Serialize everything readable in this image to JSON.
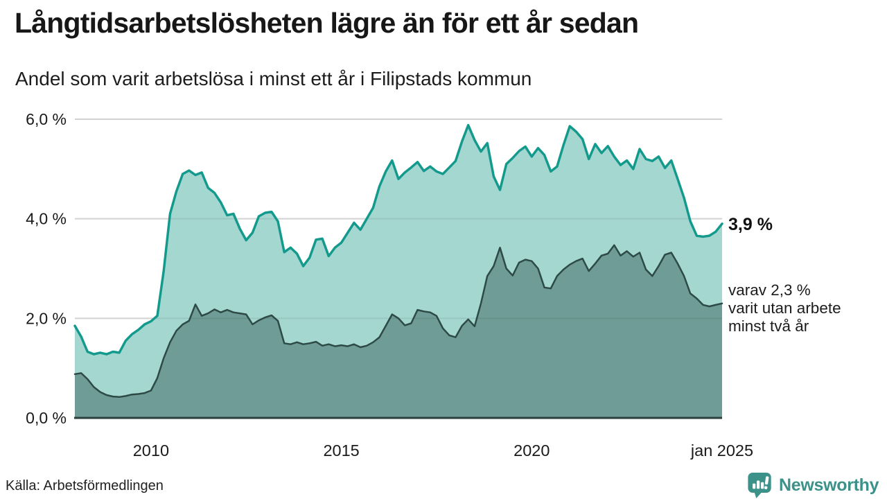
{
  "header": {
    "title": "Långtidsarbetslösheten lägre än för ett år sedan",
    "subtitle": "Andel som varit arbetslösa i minst ett år i Filipstads kommun"
  },
  "annotations": {
    "total_value": "3,9 %",
    "subset_lines": [
      "varav 2,3 %",
      "varit utan arbete",
      "minst två år"
    ]
  },
  "footer": {
    "source": "Källa: Arbetsförmedlingen",
    "brand": "Newsworthy"
  },
  "colors": {
    "total_line": "#149a8d",
    "total_fill": "#a4d7d0",
    "subset_line": "#2d4a46",
    "subset_fill": "#6f9c96",
    "gridline": "#e2e2e2",
    "baseline": "#2b3f3c",
    "brand_teal": "#3c9289",
    "text": "#1a1a1a"
  },
  "chart_data": {
    "type": "area",
    "title": "Långtidsarbetslösheten lägre än för ett år sedan",
    "subtitle": "Andel som varit arbetslösa i minst ett år i Filipstads kommun",
    "grid": true,
    "legend": "none (direct end-of-line labels)",
    "x_axis": {
      "range": [
        2008.0,
        2025.0
      ],
      "ticks": [
        {
          "value": 2010,
          "label": "2010"
        },
        {
          "value": 2015,
          "label": "2015"
        },
        {
          "value": 2020,
          "label": "2020"
        },
        {
          "value": 2025,
          "label": "jan 2025"
        }
      ]
    },
    "y_axis": {
      "range": [
        0,
        6
      ],
      "unit": "%",
      "ticks": [
        {
          "value": 0,
          "label": "0,0 %"
        },
        {
          "value": 2,
          "label": "2,0 %"
        },
        {
          "value": 4,
          "label": "4,0 %"
        },
        {
          "value": 6,
          "label": "6,0 %"
        }
      ],
      "gridlines": [
        2,
        4,
        6
      ]
    },
    "x_start": 2008.0,
    "x_step_years": 0.166667,
    "series": [
      {
        "name": "Arbetslösa minst ett år",
        "color": "#149a8d",
        "fill": "#a4d7d0",
        "line_width": 3.5,
        "end_label": "3,9 %",
        "end_value": 3.9,
        "values": [
          1.85,
          1.63,
          1.33,
          1.28,
          1.31,
          1.28,
          1.33,
          1.31,
          1.55,
          1.68,
          1.77,
          1.88,
          1.94,
          2.05,
          2.95,
          4.1,
          4.55,
          4.9,
          4.97,
          4.88,
          4.93,
          4.62,
          4.52,
          4.33,
          4.07,
          4.1,
          3.8,
          3.57,
          3.72,
          4.05,
          4.12,
          4.14,
          3.95,
          3.33,
          3.42,
          3.3,
          3.05,
          3.22,
          3.58,
          3.6,
          3.25,
          3.42,
          3.52,
          3.72,
          3.92,
          3.78,
          4.0,
          4.22,
          4.65,
          4.95,
          5.17,
          4.8,
          4.93,
          5.03,
          5.14,
          4.96,
          5.05,
          4.95,
          4.9,
          5.03,
          5.16,
          5.55,
          5.88,
          5.58,
          5.35,
          5.52,
          4.85,
          4.58,
          5.1,
          5.22,
          5.36,
          5.45,
          5.25,
          5.42,
          5.28,
          4.95,
          5.05,
          5.48,
          5.86,
          5.75,
          5.6,
          5.2,
          5.5,
          5.32,
          5.46,
          5.25,
          5.08,
          5.17,
          5.0,
          5.4,
          5.2,
          5.16,
          5.25,
          5.02,
          5.17,
          4.8,
          4.42,
          3.95,
          3.66,
          3.64,
          3.66,
          3.74,
          3.9
        ]
      },
      {
        "name": "varav utan arbete minst två år",
        "color": "#2d4a46",
        "fill": "#6f9c96",
        "line_width": 2.5,
        "end_label": "2,3 %",
        "end_value": 2.3,
        "values": [
          0.88,
          0.9,
          0.78,
          0.62,
          0.52,
          0.46,
          0.43,
          0.42,
          0.44,
          0.47,
          0.48,
          0.5,
          0.55,
          0.8,
          1.2,
          1.52,
          1.75,
          1.88,
          1.95,
          2.28,
          2.05,
          2.1,
          2.18,
          2.12,
          2.17,
          2.12,
          2.1,
          2.08,
          1.88,
          1.96,
          2.02,
          2.06,
          1.95,
          1.5,
          1.48,
          1.52,
          1.48,
          1.5,
          1.53,
          1.45,
          1.48,
          1.44,
          1.46,
          1.44,
          1.48,
          1.42,
          1.45,
          1.52,
          1.62,
          1.85,
          2.08,
          2.0,
          1.86,
          1.9,
          2.17,
          2.14,
          2.12,
          2.05,
          1.8,
          1.66,
          1.62,
          1.85,
          1.98,
          1.84,
          2.3,
          2.85,
          3.05,
          3.42,
          3.0,
          2.86,
          3.12,
          3.18,
          3.15,
          3.0,
          2.62,
          2.6,
          2.85,
          2.98,
          3.08,
          3.15,
          3.2,
          2.95,
          3.1,
          3.26,
          3.3,
          3.47,
          3.26,
          3.35,
          3.24,
          3.32,
          2.98,
          2.85,
          3.05,
          3.28,
          3.32,
          3.1,
          2.85,
          2.5,
          2.4,
          2.27,
          2.24,
          2.27,
          2.3
        ]
      }
    ]
  }
}
